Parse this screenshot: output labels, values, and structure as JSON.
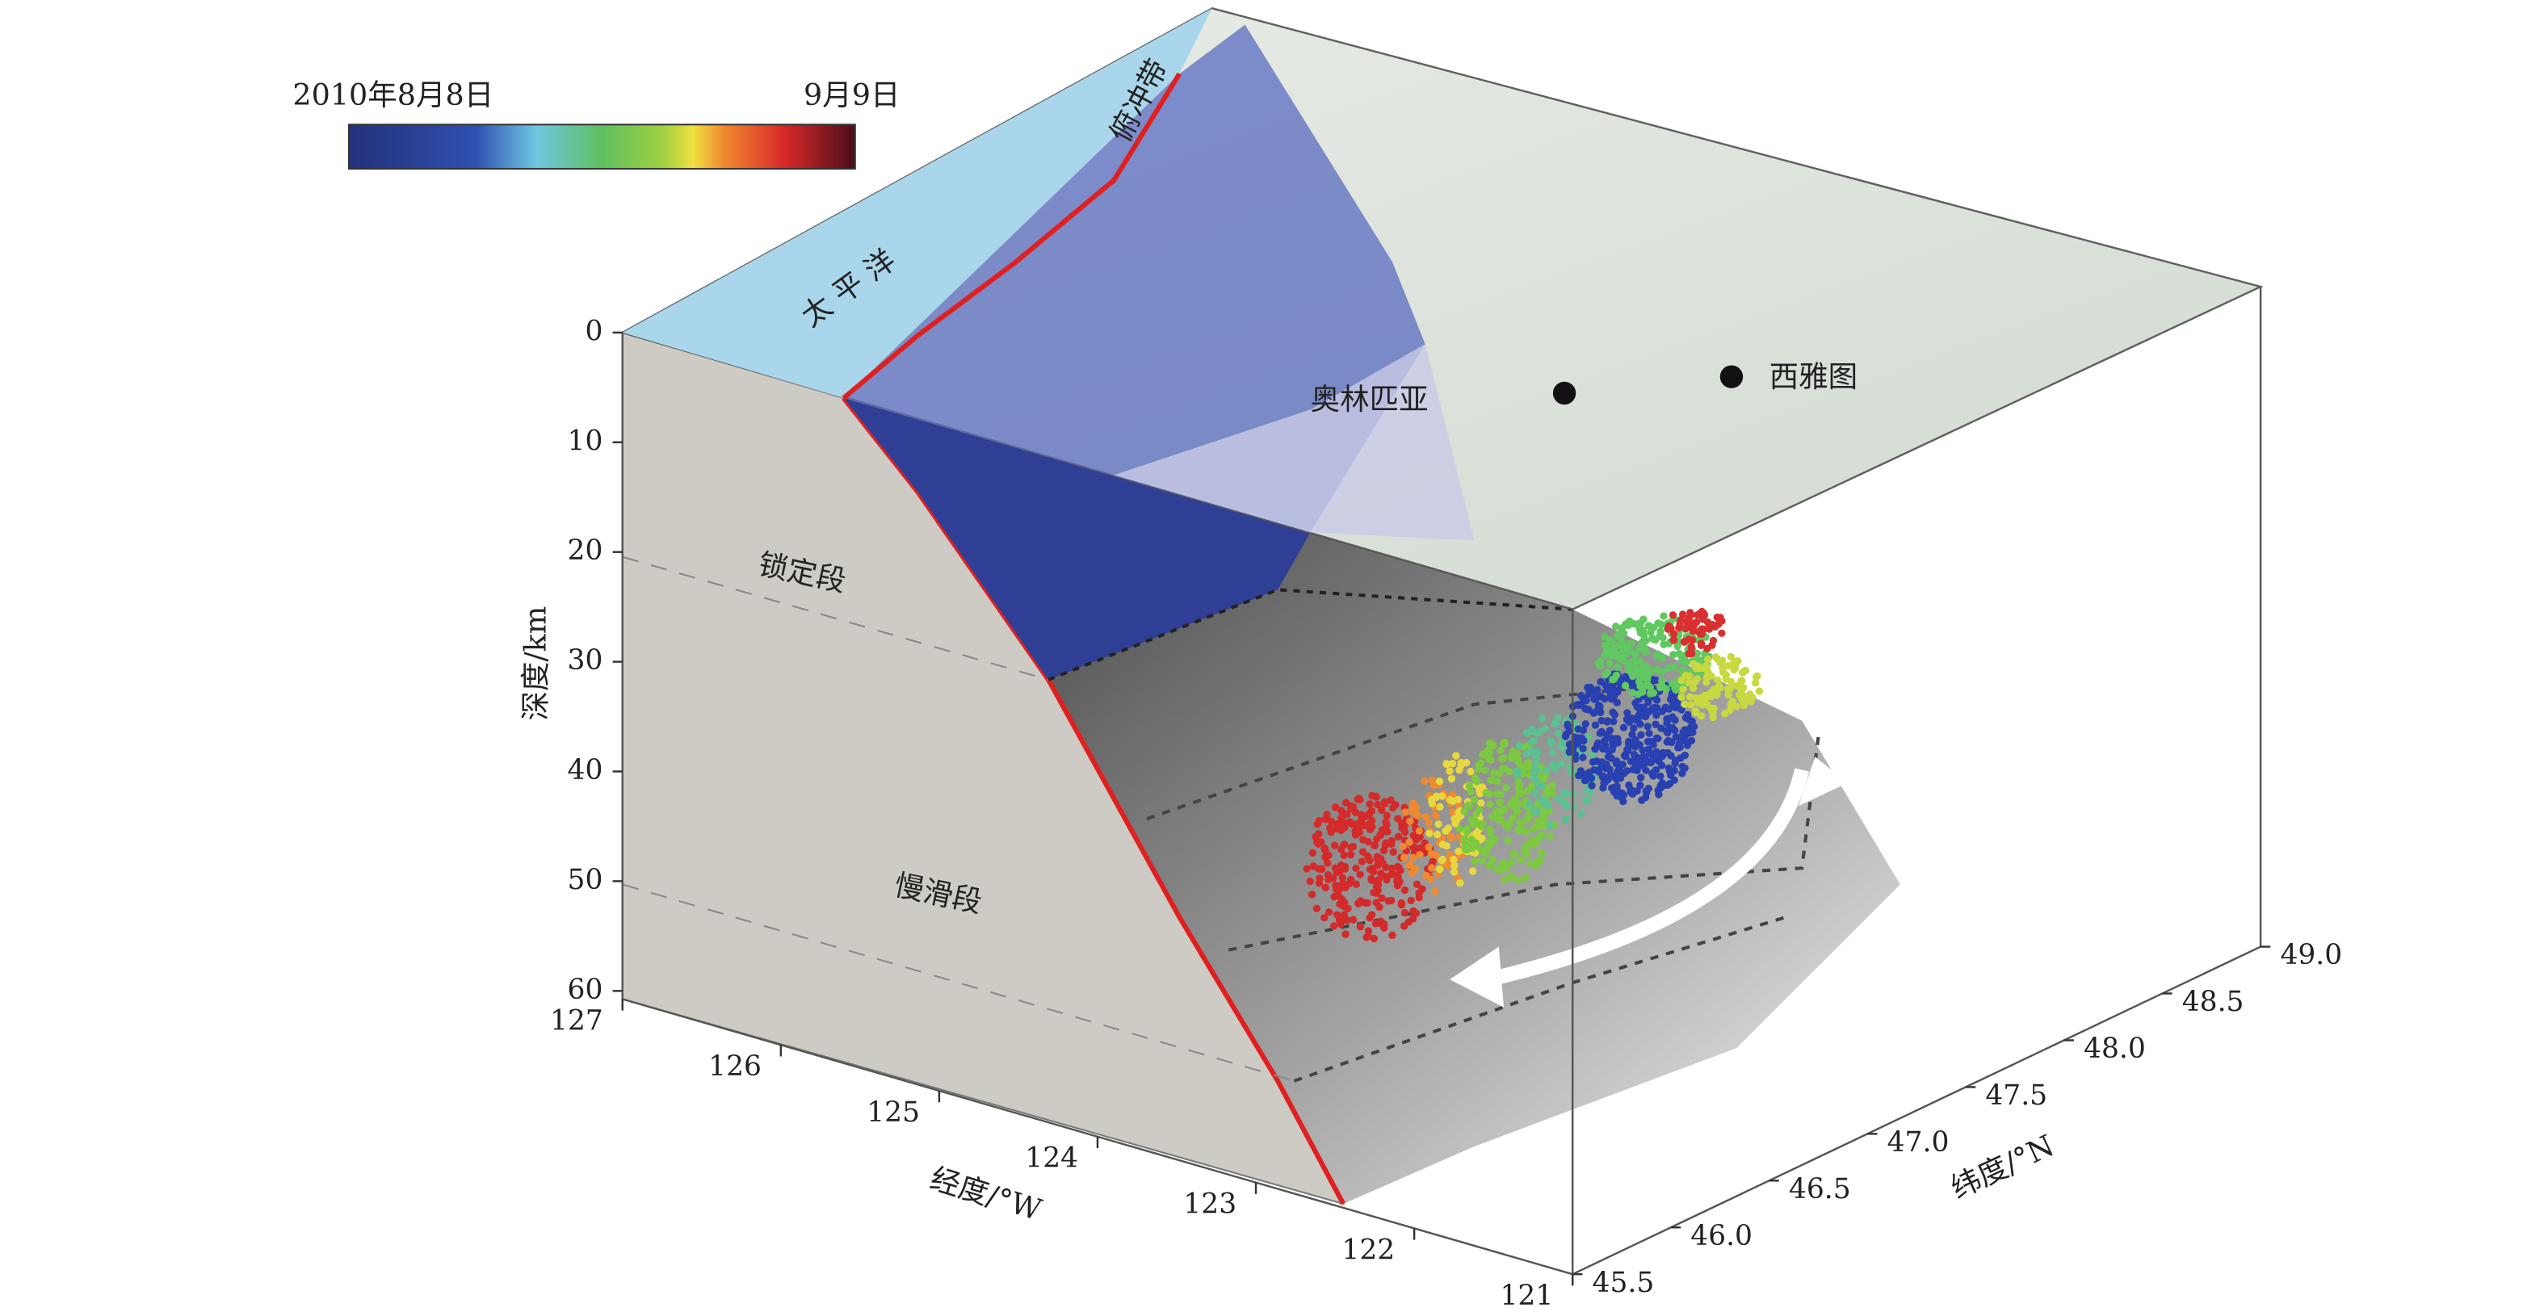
{
  "colorbar": {
    "start_label": "2010年8月8日",
    "end_label": "9月9日"
  },
  "map_labels": {
    "trench": "俯冲带",
    "ocean": "太 平 洋",
    "city_1": "奥林匹亚",
    "city_2": "西雅图"
  },
  "zone_labels": {
    "locked": "锁定段",
    "slow_slip": "慢滑段"
  },
  "axes": {
    "depth": {
      "title": "深度/km",
      "ticks": [
        0,
        10,
        20,
        30,
        40,
        50,
        60
      ]
    },
    "longitude": {
      "title": "经度/°W",
      "ticks": [
        127,
        126,
        125,
        124,
        123,
        122,
        121
      ]
    },
    "latitude": {
      "title": "纬度/°N",
      "ticks": [
        45.5,
        {
          "value": 46,
          "label": "46.0"
        },
        46.5,
        {
          "value": 47,
          "label": "47.0"
        },
        47.5,
        {
          "value": 48,
          "label": "48.0"
        },
        48.5,
        {
          "value": 49,
          "label": "49.0"
        }
      ]
    }
  }
}
